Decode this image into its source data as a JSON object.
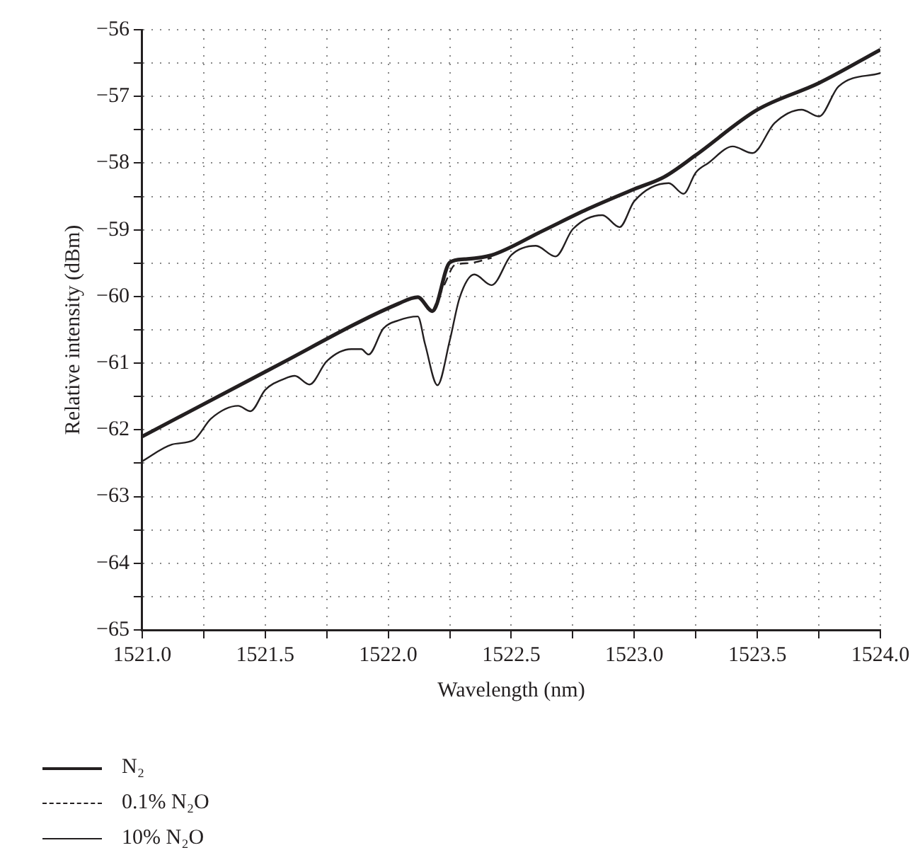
{
  "chart_data": {
    "type": "line",
    "xlabel": "Wavelength (nm)",
    "ylabel": "Relative intensity (dBm)",
    "xlim": [
      1521.0,
      1524.0
    ],
    "ylim": [
      -65,
      -56
    ],
    "xticks": [
      {
        "value": 1521.0,
        "label": "1521.0"
      },
      {
        "value": 1521.25,
        "label": null
      },
      {
        "value": 1521.5,
        "label": "1521.5"
      },
      {
        "value": 1521.75,
        "label": null
      },
      {
        "value": 1522.0,
        "label": "1522.0"
      },
      {
        "value": 1522.25,
        "label": null
      },
      {
        "value": 1522.5,
        "label": "1522.5"
      },
      {
        "value": 1522.75,
        "label": null
      },
      {
        "value": 1523.0,
        "label": "1523.0"
      },
      {
        "value": 1523.25,
        "label": null
      },
      {
        "value": 1523.5,
        "label": "1523.5"
      },
      {
        "value": 1523.75,
        "label": null
      },
      {
        "value": 1524.0,
        "label": "1524.0"
      }
    ],
    "yticks": [
      {
        "value": -65,
        "label": "−65"
      },
      {
        "value": -64.5,
        "label": null
      },
      {
        "value": -64,
        "label": "−64"
      },
      {
        "value": -63.5,
        "label": null
      },
      {
        "value": -63,
        "label": "−63"
      },
      {
        "value": -62.5,
        "label": null
      },
      {
        "value": -62,
        "label": "−62"
      },
      {
        "value": -61.5,
        "label": null
      },
      {
        "value": -61,
        "label": "−61"
      },
      {
        "value": -60.5,
        "label": null
      },
      {
        "value": -60,
        "label": "−60"
      },
      {
        "value": -59.5,
        "label": null
      },
      {
        "value": -59,
        "label": "−59"
      },
      {
        "value": -58.5,
        "label": null
      },
      {
        "value": -58,
        "label": "−58"
      },
      {
        "value": -57.5,
        "label": null
      },
      {
        "value": -57,
        "label": "−57"
      },
      {
        "value": -56.5,
        "label": null
      },
      {
        "value": -56,
        "label": "−56"
      }
    ],
    "grid": true,
    "legend": "bottom left",
    "marker": "none",
    "series": [
      {
        "name": "N₂",
        "color": "#231f20",
        "line_style": "solid",
        "x": [
          1521.0,
          1521.52,
          1522.04,
          1522.12,
          1522.18,
          1522.25,
          1522.31,
          1522.42,
          1522.62,
          1522.81,
          1523.0,
          1523.12,
          1523.25,
          1523.5,
          1523.75,
          1524.0
        ],
        "values": [
          -62.1,
          -61.09,
          -60.11,
          -60.01,
          -60.22,
          -59.49,
          -59.44,
          -59.38,
          -59.03,
          -58.69,
          -58.39,
          -58.21,
          -57.88,
          -57.2,
          -56.8,
          -56.3
        ]
      },
      {
        "name": "0.1% N₂O",
        "color": "#231f20",
        "line_style": "dashed",
        "x": [
          1522.18,
          1522.23,
          1522.27,
          1522.33,
          1522.42
        ],
        "values": [
          -60.22,
          -59.81,
          -59.53,
          -59.5,
          -59.42
        ]
      },
      {
        "name": "10% N₂O",
        "color": "#231f20",
        "line_style": "solid",
        "x": [
          1521.0,
          1521.12,
          1521.21,
          1521.28,
          1521.39,
          1521.44,
          1521.5,
          1521.58,
          1521.62,
          1521.68,
          1521.75,
          1521.85,
          1521.89,
          1521.92,
          1521.98,
          1522.04,
          1522.12,
          1522.15,
          1522.2,
          1522.25,
          1522.29,
          1522.35,
          1522.42,
          1522.5,
          1522.6,
          1522.68,
          1522.75,
          1522.87,
          1522.94,
          1523.0,
          1523.14,
          1523.2,
          1523.25,
          1523.3,
          1523.4,
          1523.48,
          1523.57,
          1523.68,
          1523.75,
          1523.83,
          1524.0
        ],
        "values": [
          -62.47,
          -62.22,
          -62.15,
          -61.83,
          -61.64,
          -61.72,
          -61.4,
          -61.23,
          -61.19,
          -61.32,
          -60.97,
          -60.79,
          -60.79,
          -60.87,
          -60.48,
          -60.36,
          -60.3,
          -60.72,
          -61.33,
          -60.66,
          -60.02,
          -59.67,
          -59.83,
          -59.38,
          -59.24,
          -59.4,
          -58.99,
          -58.78,
          -58.96,
          -58.57,
          -58.3,
          -58.46,
          -58.14,
          -58.0,
          -57.75,
          -57.85,
          -57.4,
          -57.2,
          -57.3,
          -56.85,
          -56.65
        ]
      }
    ]
  }
}
